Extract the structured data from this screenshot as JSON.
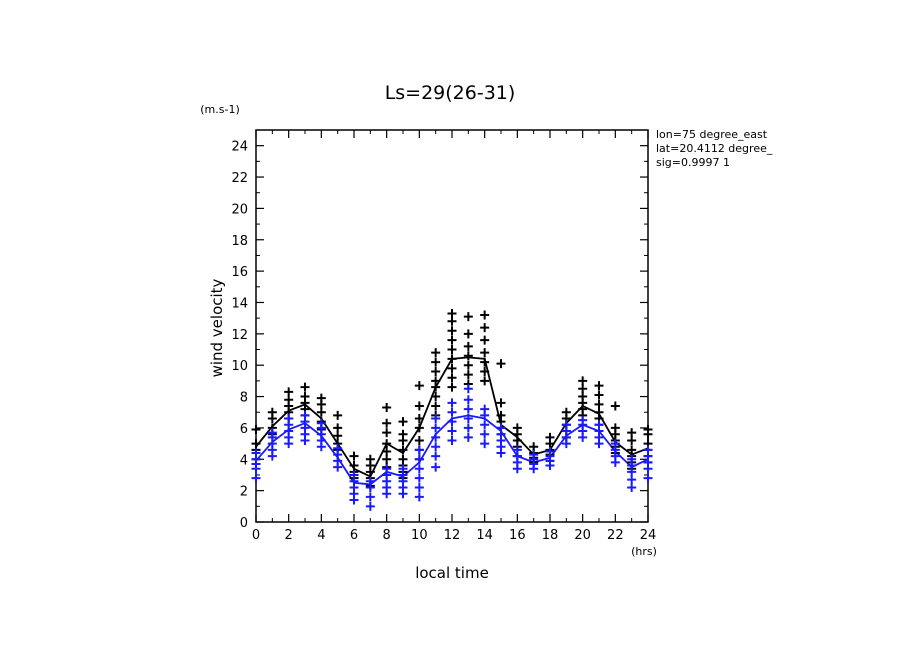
{
  "chart_data": {
    "type": "scatter",
    "title": "Ls=29(26-31)",
    "xlabel": "local time",
    "ylabel": "wind velocity",
    "x_unit": "(hrs)",
    "y_unit": "(m.s-1)",
    "xlim": [
      0,
      24
    ],
    "ylim": [
      0,
      25
    ],
    "xticks": [
      0,
      2,
      4,
      6,
      8,
      10,
      12,
      14,
      16,
      18,
      20,
      22,
      24
    ],
    "yticks": [
      0,
      2,
      4,
      6,
      8,
      10,
      12,
      14,
      16,
      18,
      20,
      22,
      24
    ],
    "grid": false,
    "annotations": [
      "lon=75 degree_east",
      "lat=20.4112 degree_",
      "sig=0.9997 1"
    ],
    "colors": {
      "black_series": "#000000",
      "blue_series": "#1a1aff"
    },
    "series": [
      {
        "marker": "+",
        "color": "#000000",
        "points": [
          [
            0,
            4.0
          ],
          [
            0,
            4.6
          ],
          [
            0,
            5.0
          ],
          [
            0,
            5.9
          ],
          [
            1,
            5.6
          ],
          [
            1,
            6.0
          ],
          [
            1,
            6.6
          ],
          [
            1,
            7.0
          ],
          [
            2,
            6.6
          ],
          [
            2,
            7.0
          ],
          [
            2,
            7.4
          ],
          [
            2,
            7.8
          ],
          [
            2,
            8.3
          ],
          [
            3,
            6.8
          ],
          [
            3,
            7.2
          ],
          [
            3,
            7.6
          ],
          [
            3,
            8.0
          ],
          [
            3,
            8.6
          ],
          [
            4,
            5.9
          ],
          [
            4,
            6.4
          ],
          [
            4,
            7.0
          ],
          [
            4,
            7.5
          ],
          [
            4,
            7.9
          ],
          [
            5,
            4.6
          ],
          [
            5,
            5.0
          ],
          [
            5,
            5.5
          ],
          [
            5,
            6.0
          ],
          [
            5,
            6.8
          ],
          [
            6,
            2.8
          ],
          [
            6,
            3.2
          ],
          [
            6,
            3.6
          ],
          [
            6,
            4.2
          ],
          [
            7,
            2.3
          ],
          [
            7,
            2.8
          ],
          [
            7,
            3.2
          ],
          [
            7,
            3.6
          ],
          [
            7,
            4.0
          ],
          [
            8,
            3.5
          ],
          [
            8,
            4.0
          ],
          [
            8,
            4.5
          ],
          [
            8,
            5.0
          ],
          [
            8,
            5.7
          ],
          [
            8,
            6.3
          ],
          [
            8,
            7.3
          ],
          [
            9,
            2.8
          ],
          [
            9,
            3.2
          ],
          [
            9,
            3.6
          ],
          [
            9,
            4.0
          ],
          [
            9,
            4.6
          ],
          [
            9,
            5.2
          ],
          [
            9,
            5.6
          ],
          [
            9,
            6.4
          ],
          [
            10,
            4.0
          ],
          [
            10,
            4.6
          ],
          [
            10,
            5.2
          ],
          [
            10,
            6.0
          ],
          [
            10,
            6.6
          ],
          [
            10,
            7.4
          ],
          [
            10,
            8.7
          ],
          [
            11,
            6.8
          ],
          [
            11,
            7.4
          ],
          [
            11,
            8.0
          ],
          [
            11,
            8.6
          ],
          [
            11,
            9.0
          ],
          [
            11,
            9.6
          ],
          [
            11,
            10.2
          ],
          [
            11,
            10.8
          ],
          [
            12,
            8.6
          ],
          [
            12,
            9.2
          ],
          [
            12,
            9.8
          ],
          [
            12,
            10.4
          ],
          [
            12,
            11.0
          ],
          [
            12,
            11.6
          ],
          [
            12,
            12.2
          ],
          [
            12,
            12.8
          ],
          [
            12,
            13.3
          ],
          [
            13,
            8.8
          ],
          [
            13,
            9.4
          ],
          [
            13,
            10.0
          ],
          [
            13,
            10.6
          ],
          [
            13,
            11.2
          ],
          [
            13,
            12.0
          ],
          [
            13,
            13.1
          ],
          [
            14,
            9.0
          ],
          [
            14,
            9.6
          ],
          [
            14,
            10.2
          ],
          [
            14,
            10.8
          ],
          [
            14,
            11.6
          ],
          [
            14,
            12.4
          ],
          [
            14,
            13.2
          ],
          [
            15,
            5.6
          ],
          [
            15,
            6.0
          ],
          [
            15,
            6.4
          ],
          [
            15,
            6.8
          ],
          [
            15,
            7.6
          ],
          [
            15,
            10.1
          ],
          [
            16,
            4.2
          ],
          [
            16,
            4.8
          ],
          [
            16,
            5.2
          ],
          [
            16,
            5.6
          ],
          [
            16,
            6.0
          ],
          [
            17,
            3.8
          ],
          [
            17,
            4.1
          ],
          [
            17,
            4.4
          ],
          [
            17,
            4.8
          ],
          [
            18,
            3.9
          ],
          [
            18,
            4.3
          ],
          [
            18,
            4.6
          ],
          [
            18,
            5.0
          ],
          [
            18,
            5.4
          ],
          [
            19,
            5.4
          ],
          [
            19,
            5.8
          ],
          [
            19,
            6.2
          ],
          [
            19,
            6.6
          ],
          [
            19,
            7.0
          ],
          [
            20,
            6.8
          ],
          [
            20,
            7.2
          ],
          [
            20,
            7.6
          ],
          [
            20,
            8.0
          ],
          [
            20,
            8.5
          ],
          [
            20,
            9.0
          ],
          [
            21,
            6.2
          ],
          [
            21,
            6.6
          ],
          [
            21,
            7.0
          ],
          [
            21,
            7.5
          ],
          [
            21,
            8.1
          ],
          [
            21,
            8.7
          ],
          [
            22,
            4.4
          ],
          [
            22,
            4.8
          ],
          [
            22,
            5.2
          ],
          [
            22,
            5.6
          ],
          [
            22,
            6.0
          ],
          [
            22,
            7.4
          ],
          [
            23,
            3.4
          ],
          [
            23,
            3.8
          ],
          [
            23,
            4.2
          ],
          [
            23,
            4.6
          ],
          [
            23,
            5.2
          ],
          [
            23,
            5.7
          ],
          [
            24,
            3.8
          ],
          [
            24,
            4.2
          ],
          [
            24,
            4.6
          ],
          [
            24,
            5.0
          ],
          [
            24,
            5.6
          ],
          [
            24,
            5.9
          ]
        ]
      },
      {
        "marker": "+",
        "color": "#1a1aff",
        "points": [
          [
            0,
            2.8
          ],
          [
            0,
            3.4
          ],
          [
            0,
            3.7
          ],
          [
            0,
            4.0
          ],
          [
            0,
            4.4
          ],
          [
            1,
            4.2
          ],
          [
            1,
            4.6
          ],
          [
            1,
            5.0
          ],
          [
            1,
            5.4
          ],
          [
            1,
            5.7
          ],
          [
            2,
            5.0
          ],
          [
            2,
            5.4
          ],
          [
            2,
            5.8
          ],
          [
            2,
            6.2
          ],
          [
            2,
            6.6
          ],
          [
            3,
            5.2
          ],
          [
            3,
            5.6
          ],
          [
            3,
            6.0
          ],
          [
            3,
            6.4
          ],
          [
            3,
            6.8
          ],
          [
            4,
            4.8
          ],
          [
            4,
            5.2
          ],
          [
            4,
            5.6
          ],
          [
            4,
            6.0
          ],
          [
            4,
            6.3
          ],
          [
            5,
            3.5
          ],
          [
            5,
            3.9
          ],
          [
            5,
            4.3
          ],
          [
            5,
            4.7
          ],
          [
            6,
            1.4
          ],
          [
            6,
            1.8
          ],
          [
            6,
            2.2
          ],
          [
            6,
            2.6
          ],
          [
            6,
            3.0
          ],
          [
            7,
            1.0
          ],
          [
            7,
            1.6
          ],
          [
            7,
            2.2
          ],
          [
            7,
            2.6
          ],
          [
            8,
            1.8
          ],
          [
            8,
            2.2
          ],
          [
            8,
            2.6
          ],
          [
            8,
            3.0
          ],
          [
            8,
            3.4
          ],
          [
            9,
            1.8
          ],
          [
            9,
            2.2
          ],
          [
            9,
            2.6
          ],
          [
            9,
            3.0
          ],
          [
            9,
            3.4
          ],
          [
            10,
            1.6
          ],
          [
            10,
            2.2
          ],
          [
            10,
            2.8
          ],
          [
            10,
            3.4
          ],
          [
            10,
            4.0
          ],
          [
            10,
            4.6
          ],
          [
            11,
            3.5
          ],
          [
            11,
            4.2
          ],
          [
            11,
            4.8
          ],
          [
            11,
            5.4
          ],
          [
            11,
            6.0
          ],
          [
            11,
            6.6
          ],
          [
            12,
            5.2
          ],
          [
            12,
            5.8
          ],
          [
            12,
            6.4
          ],
          [
            12,
            7.0
          ],
          [
            12,
            7.6
          ],
          [
            13,
            5.4
          ],
          [
            13,
            6.0
          ],
          [
            13,
            6.6
          ],
          [
            13,
            7.2
          ],
          [
            13,
            7.8
          ],
          [
            13,
            8.5
          ],
          [
            14,
            5.0
          ],
          [
            14,
            5.6
          ],
          [
            14,
            6.2
          ],
          [
            14,
            6.8
          ],
          [
            14,
            7.2
          ],
          [
            15,
            4.4
          ],
          [
            15,
            4.8
          ],
          [
            15,
            5.2
          ],
          [
            15,
            5.6
          ],
          [
            15,
            6.0
          ],
          [
            16,
            3.4
          ],
          [
            16,
            3.8
          ],
          [
            16,
            4.2
          ],
          [
            16,
            4.6
          ],
          [
            17,
            3.4
          ],
          [
            17,
            3.7
          ],
          [
            17,
            4.0
          ],
          [
            17,
            4.3
          ],
          [
            18,
            3.6
          ],
          [
            18,
            3.9
          ],
          [
            18,
            4.2
          ],
          [
            18,
            4.5
          ],
          [
            19,
            5.0
          ],
          [
            19,
            5.4
          ],
          [
            19,
            5.8
          ],
          [
            19,
            6.2
          ],
          [
            20,
            5.4
          ],
          [
            20,
            5.8
          ],
          [
            20,
            6.2
          ],
          [
            20,
            6.5
          ],
          [
            21,
            5.0
          ],
          [
            21,
            5.4
          ],
          [
            21,
            5.8
          ],
          [
            21,
            6.2
          ],
          [
            22,
            3.8
          ],
          [
            22,
            4.2
          ],
          [
            22,
            4.6
          ],
          [
            22,
            5.0
          ],
          [
            23,
            2.2
          ],
          [
            23,
            2.7
          ],
          [
            23,
            3.2
          ],
          [
            23,
            3.6
          ],
          [
            23,
            4.0
          ],
          [
            24,
            2.8
          ],
          [
            24,
            3.4
          ],
          [
            24,
            3.8
          ],
          [
            24,
            4.2
          ],
          [
            24,
            4.6
          ]
        ]
      },
      {
        "color": "#000000",
        "line": true,
        "points": [
          [
            0,
            4.8
          ],
          [
            1,
            6.1
          ],
          [
            2,
            7.1
          ],
          [
            3,
            7.5
          ],
          [
            4,
            6.6
          ],
          [
            5,
            5.0
          ],
          [
            6,
            3.4
          ],
          [
            7,
            2.9
          ],
          [
            8,
            5.0
          ],
          [
            9,
            4.4
          ],
          [
            10,
            6.0
          ],
          [
            11,
            8.6
          ],
          [
            12,
            10.4
          ],
          [
            13,
            10.5
          ],
          [
            14,
            10.4
          ],
          [
            15,
            6.2
          ],
          [
            16,
            5.4
          ],
          [
            17,
            4.3
          ],
          [
            18,
            4.6
          ],
          [
            19,
            6.3
          ],
          [
            20,
            7.4
          ],
          [
            21,
            6.9
          ],
          [
            22,
            5.1
          ],
          [
            23,
            4.3
          ],
          [
            24,
            4.7
          ]
        ]
      },
      {
        "color": "#1a1aff",
        "line": true,
        "points": [
          [
            0,
            3.9
          ],
          [
            1,
            5.1
          ],
          [
            2,
            5.9
          ],
          [
            3,
            6.3
          ],
          [
            4,
            5.5
          ],
          [
            5,
            4.1
          ],
          [
            6,
            2.5
          ],
          [
            7,
            2.4
          ],
          [
            8,
            3.2
          ],
          [
            9,
            2.9
          ],
          [
            10,
            3.8
          ],
          [
            11,
            5.6
          ],
          [
            12,
            6.6
          ],
          [
            13,
            6.8
          ],
          [
            14,
            6.6
          ],
          [
            15,
            5.8
          ],
          [
            16,
            4.2
          ],
          [
            17,
            3.8
          ],
          [
            18,
            4.1
          ],
          [
            19,
            5.5
          ],
          [
            20,
            6.2
          ],
          [
            21,
            5.8
          ],
          [
            22,
            4.5
          ],
          [
            23,
            3.5
          ],
          [
            24,
            4.0
          ]
        ]
      }
    ]
  }
}
